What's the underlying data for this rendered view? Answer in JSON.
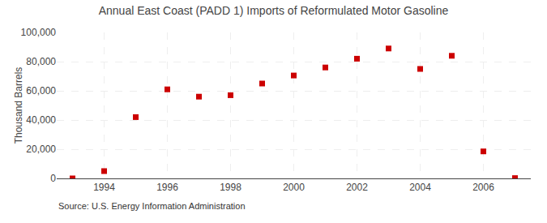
{
  "chart_data": {
    "type": "scatter",
    "title": "Annual East Coast (PADD 1) Imports of Reformulated Motor Gasoline",
    "ylabel": "Thousand Barrels",
    "x": [
      1993,
      1994,
      1995,
      1996,
      1997,
      1998,
      1999,
      2000,
      2001,
      2002,
      2003,
      2004,
      2005,
      2006,
      2007
    ],
    "values": [
      0,
      5000,
      42000,
      61000,
      56000,
      57000,
      65000,
      70500,
      76000,
      82000,
      89000,
      75000,
      84000,
      18500,
      200
    ],
    "color": "#cc0000",
    "marker": "square",
    "xlim": [
      1992.5,
      2007.5
    ],
    "xticks": [
      1994,
      1996,
      1998,
      2000,
      2002,
      2004,
      2006
    ],
    "ylim": [
      0,
      100000
    ],
    "yticks": [
      0,
      {
        "value": 20000,
        "label": "20,000"
      },
      {
        "value": 40000,
        "label": "40,000"
      },
      {
        "value": 60000,
        "label": "60,000"
      },
      {
        "value": 80000,
        "label": "80,000"
      },
      {
        "value": 100000,
        "label": "100,000"
      }
    ],
    "grid": true,
    "annotations": [
      "Source: U.S. Energy Information Administration"
    ]
  }
}
